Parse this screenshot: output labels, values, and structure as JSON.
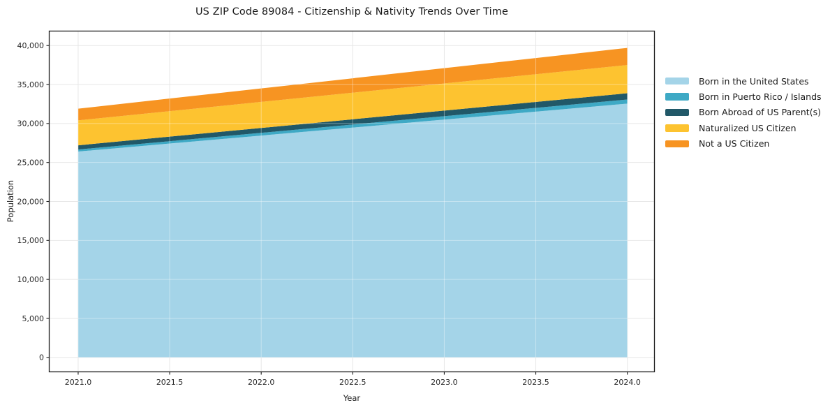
{
  "chart_data": {
    "type": "area",
    "stacked": true,
    "title": "US ZIP Code 89084 - Citizenship & Nativity Trends Over Time",
    "xlabel": "Year",
    "ylabel": "Population",
    "x": [
      2021,
      2024
    ],
    "series": [
      {
        "name": "Born in the United States",
        "color": "#a4d4e8",
        "values": [
          26400,
          32550
        ]
      },
      {
        "name": "Born in Puerto Rico / Islands",
        "color": "#3ea9c5",
        "values": [
          260,
          530
        ]
      },
      {
        "name": "Born Abroad of US Parent(s)",
        "color": "#215868",
        "values": [
          540,
          800
        ]
      },
      {
        "name": "Naturalized US Citizen",
        "color": "#fdc330",
        "values": [
          3200,
          3620
        ]
      },
      {
        "name": "Not a US Citizen",
        "color": "#f79422",
        "values": [
          1500,
          2200
        ]
      }
    ],
    "totals": {
      "2021": 31900,
      "2024": 39700
    },
    "xticks": [
      2021.0,
      2021.5,
      2022.0,
      2022.5,
      2023.0,
      2023.5,
      2024.0
    ],
    "yticks": [
      0,
      5000,
      10000,
      15000,
      20000,
      25000,
      30000,
      35000,
      40000
    ],
    "xlim": [
      2020.84,
      2024.15
    ],
    "ylim": [
      -1900,
      41900
    ],
    "grid": true,
    "legend_position": "outside-right",
    "colors": {
      "grid": "#e7e7e7",
      "grid_overlay": "rgba(255,255,255,0.38)",
      "spine": "#1a1a1a",
      "text": "#262626",
      "background": "#ffffff"
    }
  }
}
